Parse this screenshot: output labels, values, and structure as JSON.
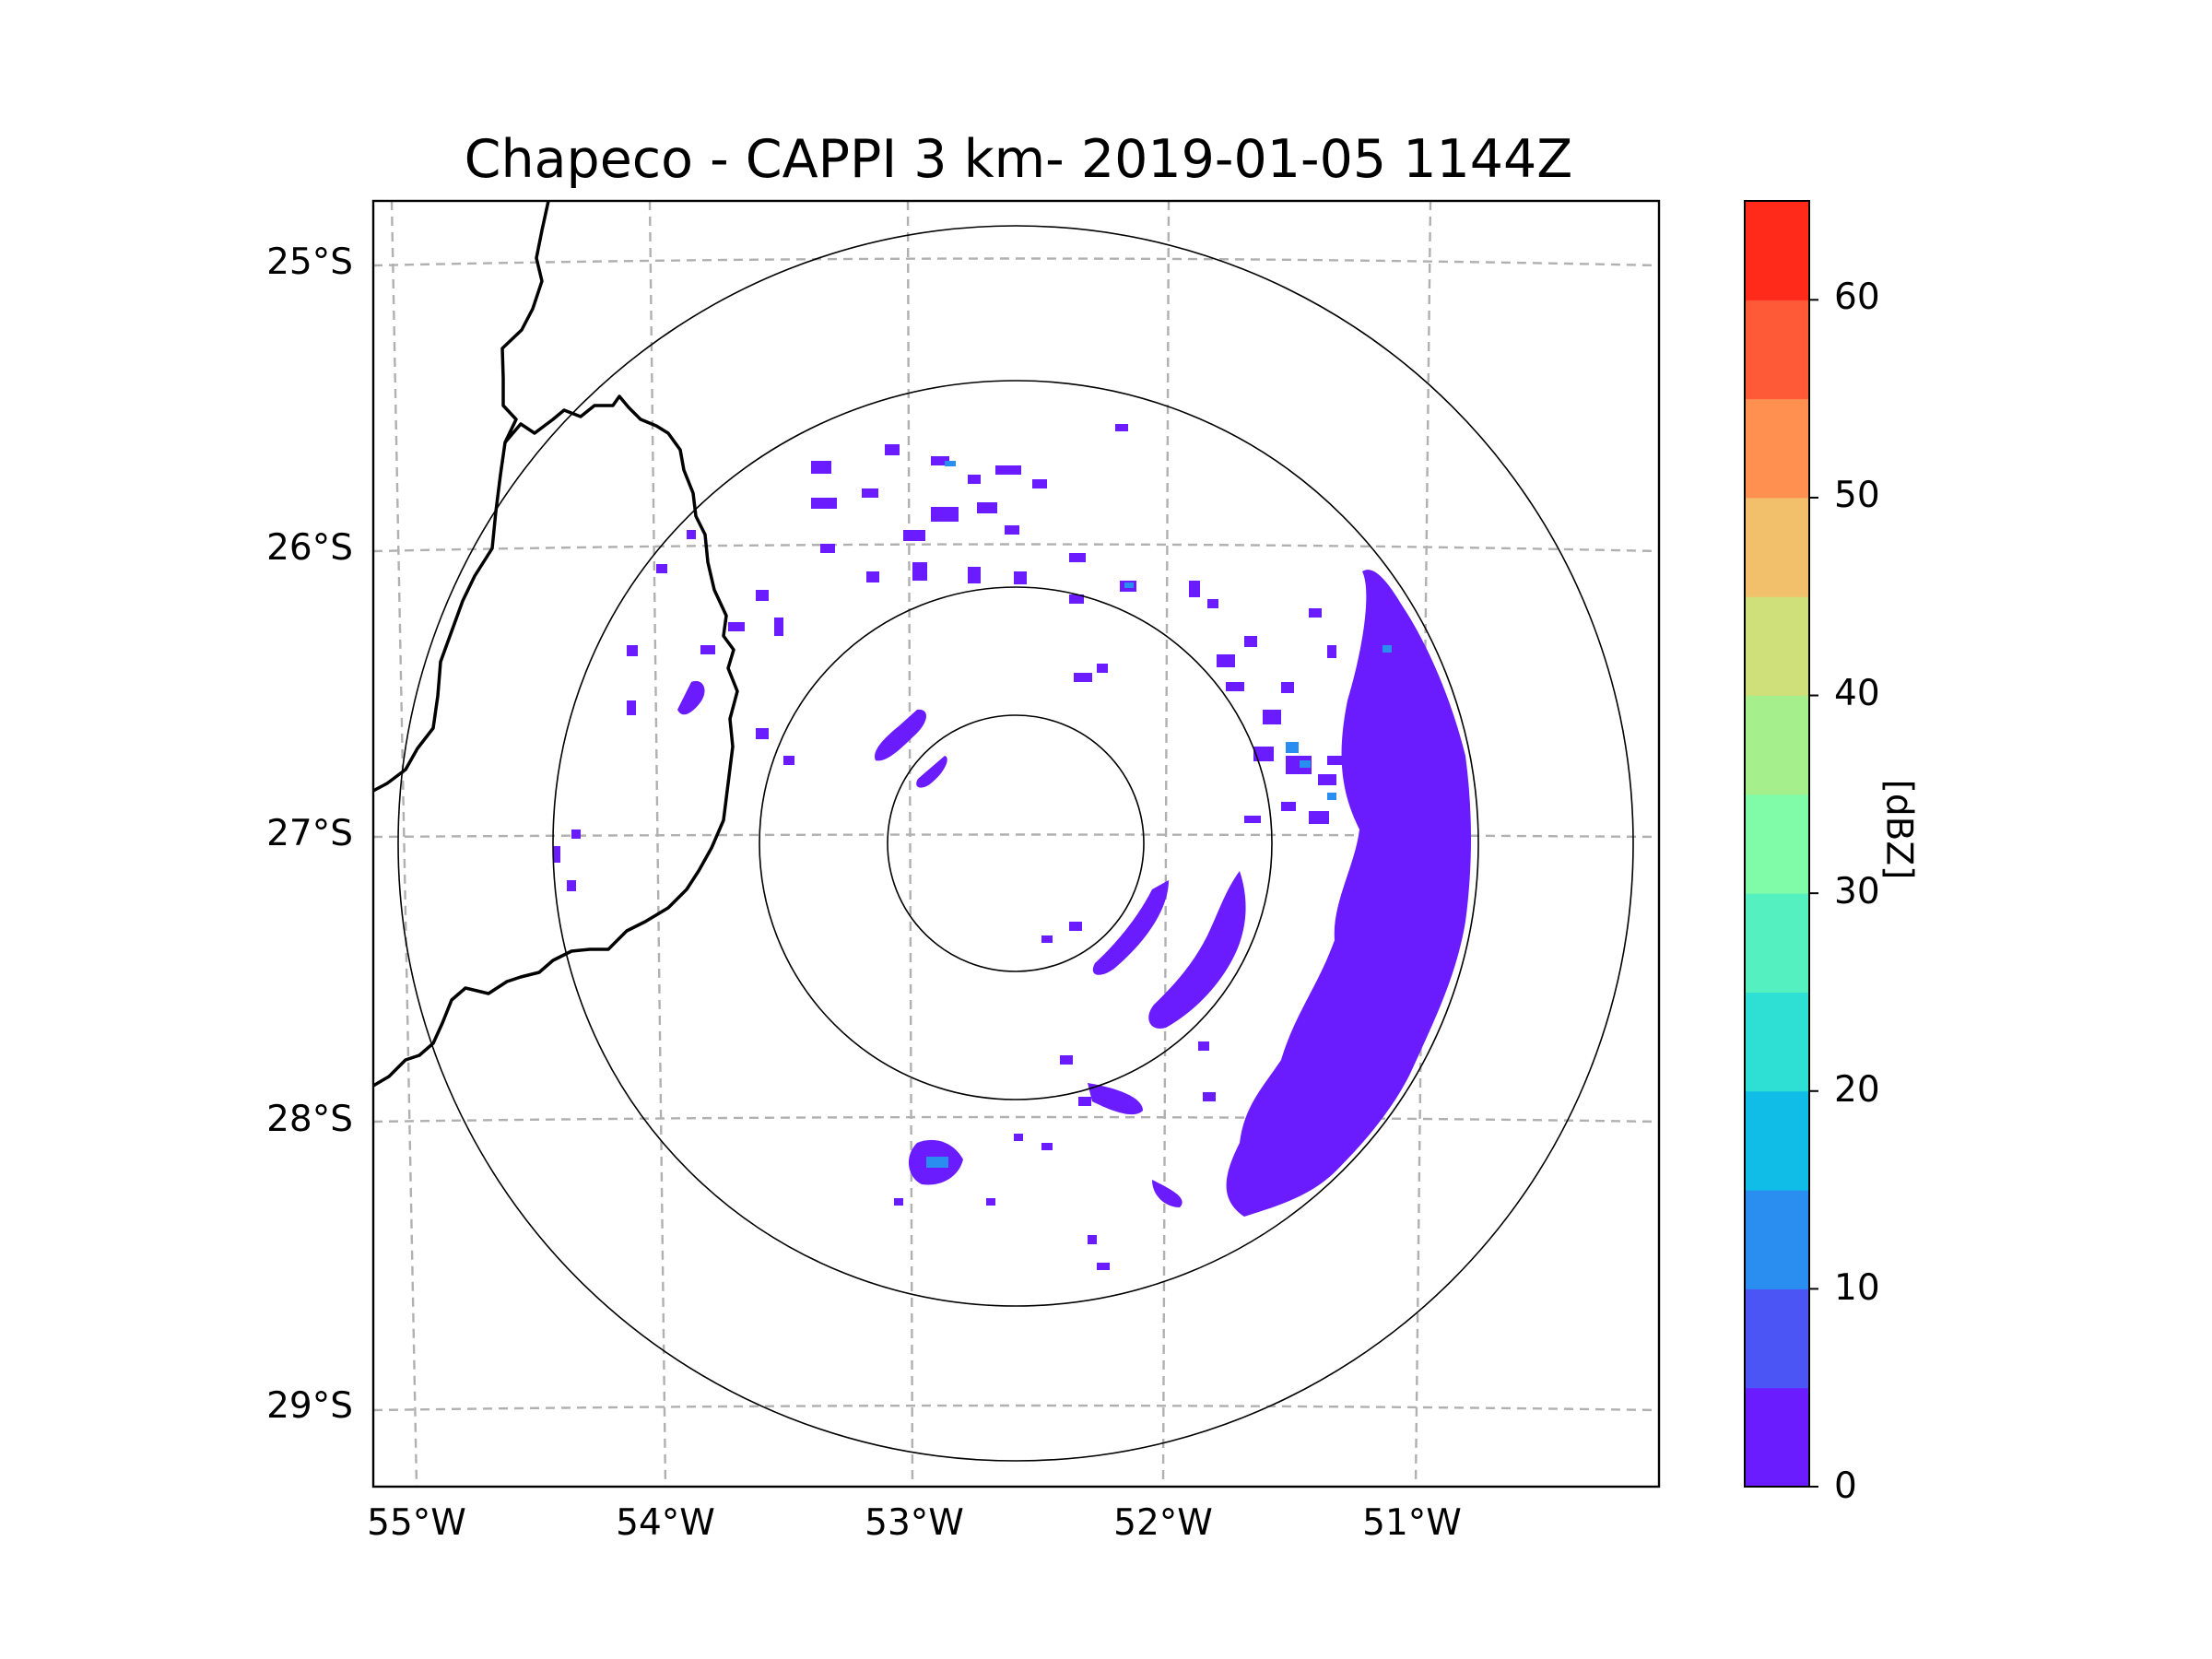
{
  "title": "Chapeco - CAPPI 3 km- 2019-01-05 1144Z",
  "map": {
    "lat_ticks": [
      "25°S",
      "26°S",
      "27°S",
      "28°S",
      "29°S"
    ],
    "lon_ticks": [
      "55°W",
      "54°W",
      "53°W",
      "52°W",
      "51°W"
    ],
    "range_rings_count": 4,
    "gridline_color": "#b0b0b0",
    "border_color": "#000000"
  },
  "colorbar": {
    "label": "[dBZ]",
    "ticks": [
      "0",
      "10",
      "20",
      "30",
      "40",
      "50",
      "60"
    ],
    "min": 0,
    "max": 65,
    "step": 5,
    "colors": [
      "#6a1cff",
      "#4b55f5",
      "#2a8ef0",
      "#10bde6",
      "#2ee0d4",
      "#55f0c0",
      "#80fca8",
      "#a5f08c",
      "#cfe07a",
      "#f2c06a",
      "#ff9050",
      "#ff5a38",
      "#ff2a1a"
    ]
  }
}
